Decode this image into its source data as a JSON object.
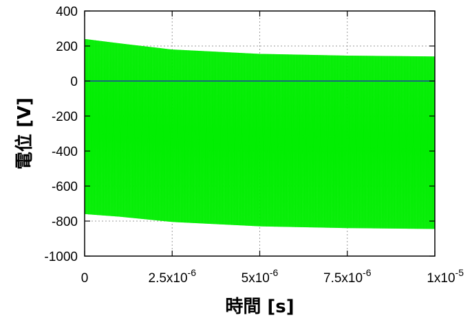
{
  "chart_data": {
    "type": "area",
    "title": "",
    "xlabel": "時間 [s]",
    "ylabel": "電位 [V]",
    "xlim": [
      0,
      1e-05
    ],
    "ylim": [
      -1000,
      400
    ],
    "grid": true,
    "x_ticks": [
      {
        "value": 0,
        "label": "0"
      },
      {
        "value": 2.5e-06,
        "label": "2.5x10",
        "exp": "-6"
      },
      {
        "value": 5e-06,
        "label": "5x10",
        "exp": "-6"
      },
      {
        "value": 7.5e-06,
        "label": "7.5x10",
        "exp": "-6"
      },
      {
        "value": 1e-05,
        "label": "1x10",
        "exp": "-5"
      }
    ],
    "y_ticks": [
      {
        "value": 400,
        "label": "400"
      },
      {
        "value": 200,
        "label": "200"
      },
      {
        "value": 0,
        "label": "0"
      },
      {
        "value": -200,
        "label": "-200"
      },
      {
        "value": -400,
        "label": "-400"
      },
      {
        "value": -600,
        "label": "-600"
      },
      {
        "value": -800,
        "label": "-800"
      },
      {
        "value": -1000,
        "label": "-1000"
      }
    ],
    "series": [
      {
        "color": "#00ee00",
        "kind": "oscillating-envelope",
        "x": [
          0,
          1e-06,
          2.5e-06,
          5e-06,
          7.5e-06,
          1e-05
        ],
        "upper": [
          240,
          215,
          180,
          155,
          145,
          140
        ],
        "lower": [
          -760,
          -775,
          -805,
          -830,
          -840,
          -845
        ]
      },
      {
        "color": "#1f3fa0",
        "kind": "line",
        "x": [
          0,
          1e-05
        ],
        "y": [
          0,
          0
        ]
      }
    ]
  }
}
